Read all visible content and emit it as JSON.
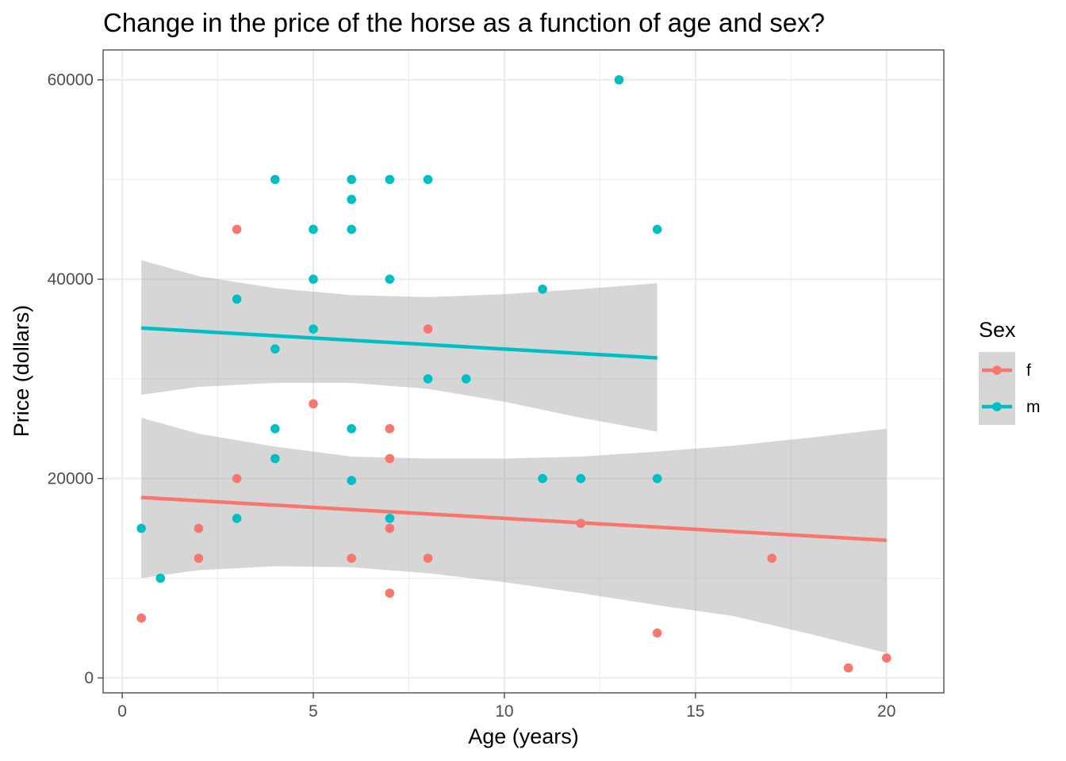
{
  "chart_data": {
    "type": "scatter",
    "title": "Change in the price of the horse as a function of age and sex?",
    "xlabel": "Age (years)",
    "ylabel": "Price (dollars)",
    "xlim": [
      -0.5,
      21.5
    ],
    "ylim": [
      -1500,
      63000
    ],
    "x_ticks": [
      "0",
      "5",
      "10",
      "15",
      "20"
    ],
    "y_ticks": [
      "0",
      "20000",
      "40000",
      "60000"
    ],
    "grid": true,
    "legend": {
      "title": "Sex",
      "placement": "right",
      "entries": [
        "f",
        "m"
      ]
    },
    "colors": {
      "f": "#F8766D",
      "m": "#00BFC4",
      "ribbon": "#999999",
      "grid": "#EBEBEB",
      "panel_border": "#333333"
    },
    "series": [
      {
        "name": "f",
        "points": [
          [
            0.5,
            6000
          ],
          [
            2,
            15000
          ],
          [
            2,
            12000
          ],
          [
            3,
            45000
          ],
          [
            3,
            20000
          ],
          [
            5,
            27500
          ],
          [
            6,
            12000
          ],
          [
            7,
            25000
          ],
          [
            7,
            22000
          ],
          [
            7,
            15000
          ],
          [
            7,
            8500
          ],
          [
            8,
            35000
          ],
          [
            8,
            12000
          ],
          [
            12,
            15500
          ],
          [
            14,
            4500
          ],
          [
            17,
            12000
          ],
          [
            19,
            1000
          ],
          [
            20,
            2000
          ]
        ],
        "fit": {
          "x_start": 0.5,
          "x_end": 20,
          "y_start": 18100,
          "y_end": 13800
        },
        "ribbon": {
          "x": [
            0.5,
            2,
            4,
            6,
            8,
            10,
            12,
            14,
            16,
            18,
            20
          ],
          "lower": [
            10000,
            10800,
            11200,
            11100,
            10500,
            9600,
            8500,
            7300,
            6200,
            4400,
            2500
          ],
          "upper": [
            26100,
            24500,
            23200,
            22200,
            22000,
            22000,
            22200,
            22700,
            23300,
            24100,
            25000
          ]
        }
      },
      {
        "name": "m",
        "points": [
          [
            0.5,
            15000
          ],
          [
            1,
            10000
          ],
          [
            3,
            38000
          ],
          [
            3,
            16000
          ],
          [
            4,
            50000
          ],
          [
            4,
            33000
          ],
          [
            4,
            25000
          ],
          [
            4,
            22000
          ],
          [
            5,
            45000
          ],
          [
            5,
            40000
          ],
          [
            5,
            35000
          ],
          [
            6,
            50000
          ],
          [
            6,
            48000
          ],
          [
            6,
            45000
          ],
          [
            6,
            25000
          ],
          [
            6,
            19800
          ],
          [
            7,
            50000
          ],
          [
            7,
            40000
          ],
          [
            7,
            16000
          ],
          [
            8,
            50000
          ],
          [
            8,
            30000
          ],
          [
            9,
            30000
          ],
          [
            11,
            39000
          ],
          [
            11,
            20000
          ],
          [
            12,
            20000
          ],
          [
            13,
            60000
          ],
          [
            14,
            45000
          ],
          [
            14,
            20000
          ]
        ],
        "fit": {
          "x_start": 0.5,
          "x_end": 14,
          "y_start": 35100,
          "y_end": 32100
        },
        "ribbon": {
          "x": [
            0.5,
            2,
            4,
            6,
            8,
            10,
            12,
            14
          ],
          "lower": [
            28400,
            29200,
            29600,
            29600,
            29000,
            27700,
            26100,
            24700
          ],
          "upper": [
            41900,
            40300,
            39100,
            38400,
            38200,
            38500,
            39000,
            39600
          ]
        }
      }
    ]
  }
}
